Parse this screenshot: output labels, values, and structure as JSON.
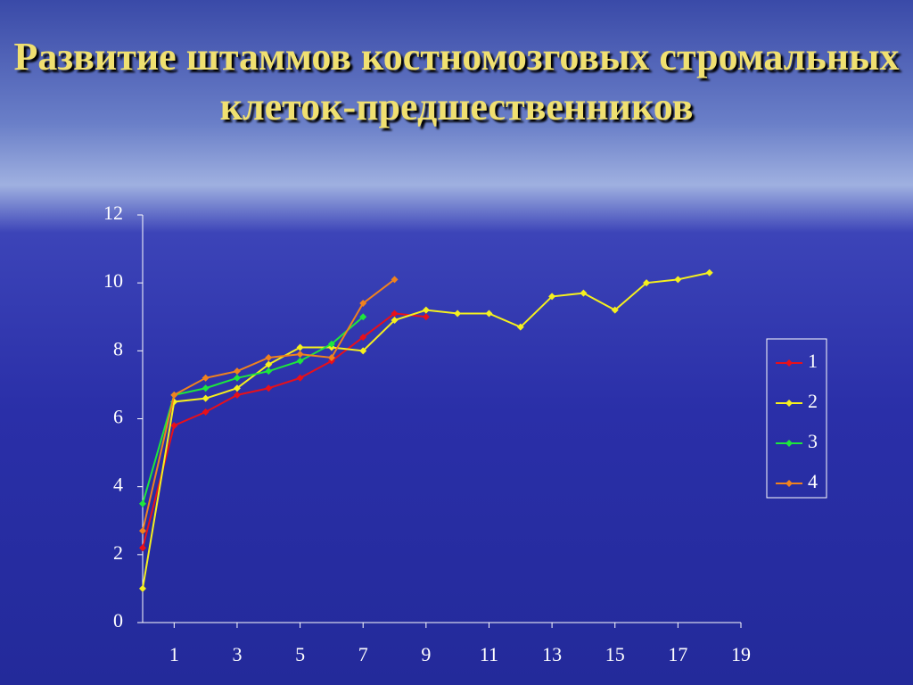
{
  "chart_data": {
    "type": "line",
    "title": "Развитие штаммов костномозговых стромальных клеток-предшественников",
    "x": [
      0,
      1,
      2,
      3,
      4,
      5,
      6,
      7,
      8,
      9,
      10,
      11,
      12,
      13,
      14,
      15,
      16,
      17,
      18
    ],
    "xlim": [
      0,
      19
    ],
    "xticks": [
      1,
      3,
      5,
      7,
      9,
      11,
      13,
      15,
      17,
      19
    ],
    "ylim": [
      0,
      12
    ],
    "yticks": [
      0,
      2,
      4,
      6,
      8,
      10,
      12
    ],
    "legend": "right",
    "series": [
      {
        "name": "1",
        "color": "#e8101a",
        "values": [
          2.2,
          5.8,
          6.2,
          6.7,
          6.9,
          7.2,
          7.7,
          8.4,
          9.1,
          9.0,
          null,
          null,
          null,
          null,
          null,
          null,
          null,
          null,
          null
        ]
      },
      {
        "name": "2",
        "color": "#f5f01e",
        "values": [
          1.0,
          6.5,
          6.6,
          6.9,
          7.6,
          8.1,
          8.1,
          8.0,
          8.9,
          9.2,
          9.1,
          9.1,
          8.7,
          9.6,
          9.7,
          9.2,
          10.0,
          10.1,
          10.3
        ]
      },
      {
        "name": "3",
        "color": "#1ee63c",
        "values": [
          3.5,
          6.7,
          6.9,
          7.2,
          7.4,
          7.7,
          8.2,
          9.0,
          null,
          null,
          null,
          null,
          null,
          null,
          null,
          null,
          null,
          null,
          null
        ]
      },
      {
        "name": "4",
        "color": "#f0821e",
        "values": [
          2.7,
          6.7,
          7.2,
          7.4,
          7.8,
          7.9,
          7.8,
          9.4,
          10.1,
          null,
          null,
          null,
          null,
          null,
          null,
          null,
          null,
          null,
          null
        ]
      }
    ]
  }
}
